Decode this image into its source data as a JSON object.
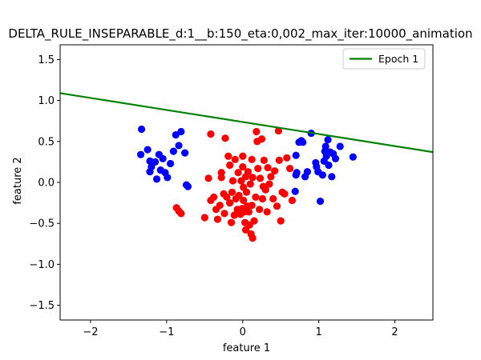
{
  "chart_data": {
    "type": "scatter",
    "title": "DELTA_RULE_INSEPARABLE_d:1__b:150_eta:0,002_max_iter:10000_animation",
    "xlabel": "feature 1",
    "ylabel": "feature 2",
    "xlim": [
      -2.4,
      2.5
    ],
    "ylim": [
      -1.68,
      1.68
    ],
    "xticks": [
      -2,
      -1,
      0,
      1,
      2
    ],
    "xtick_labels": [
      "−2",
      "−1",
      "0",
      "1",
      "2"
    ],
    "yticks": [
      -1.5,
      -1.0,
      -0.5,
      0.0,
      0.5,
      1.0,
      1.5
    ],
    "ytick_labels": [
      "−1.5",
      "−1.0",
      "−0.5",
      "0.0",
      "0.5",
      "1.0",
      "1.5"
    ],
    "grid": false,
    "legend_position": "upper-right",
    "series": [
      {
        "color": "#0000ff",
        "points": [
          [
            -1.33,
            0.65
          ],
          [
            -1.34,
            0.34
          ],
          [
            -1.25,
            0.4
          ],
          [
            -1.22,
            0.26
          ],
          [
            -1.2,
            0.19
          ],
          [
            -1.22,
            0.13
          ],
          [
            -1.15,
            0.25
          ],
          [
            -1.1,
            0.34
          ],
          [
            -1.08,
            0.15
          ],
          [
            -1.05,
            0.29
          ],
          [
            -1.02,
            0.12
          ],
          [
            -0.99,
            0.06
          ],
          [
            -0.95,
            0.23
          ],
          [
            -0.91,
            0.38
          ],
          [
            -0.88,
            0.58
          ],
          [
            -0.84,
            0.45
          ],
          [
            -0.81,
            0.62
          ],
          [
            -0.76,
            0.36
          ],
          [
            -0.74,
            -0.03
          ],
          [
            -0.72,
            -0.05
          ],
          [
            -1.13,
            0.04
          ],
          [
            0.7,
            0.09
          ],
          [
            0.71,
            0.12
          ],
          [
            0.74,
            0.49
          ],
          [
            0.77,
            0.51
          ],
          [
            0.79,
            0.49
          ],
          [
            0.7,
            0.33
          ],
          [
            0.69,
            -0.11
          ],
          [
            0.82,
            0.07
          ],
          [
            0.85,
            0.13
          ],
          [
            0.9,
            0.6
          ],
          [
            0.96,
            0.24
          ],
          [
            0.97,
            0.19
          ],
          [
            0.99,
            0.13
          ],
          [
            1.02,
            -0.23
          ],
          [
            1.05,
            0.09
          ],
          [
            1.07,
            0.26
          ],
          [
            1.08,
            0.38
          ],
          [
            1.09,
            0.44
          ],
          [
            1.1,
            0.32
          ],
          [
            1.12,
            0.52
          ],
          [
            1.13,
            0.21
          ],
          [
            1.15,
            0.37
          ],
          [
            1.17,
            0.07
          ],
          [
            1.19,
            0.35
          ],
          [
            1.22,
            0.29
          ],
          [
            1.28,
            0.44
          ],
          [
            1.45,
            0.31
          ]
        ]
      },
      {
        "color": "#ff0000",
        "points": [
          [
            -0.87,
            -0.31
          ],
          [
            -0.84,
            -0.35
          ],
          [
            -0.81,
            -0.38
          ],
          [
            -0.5,
            -0.43
          ],
          [
            -0.42,
            0.59
          ],
          [
            -0.42,
            -0.22
          ],
          [
            -0.38,
            -0.18
          ],
          [
            -0.35,
            -0.33
          ],
          [
            -0.33,
            -0.45
          ],
          [
            -0.3,
            -0.28
          ],
          [
            -0.28,
            0.06
          ],
          [
            -0.28,
            0.12
          ],
          [
            -0.25,
            -0.14
          ],
          [
            -0.24,
            -0.38
          ],
          [
            -0.23,
            0.54
          ],
          [
            -0.21,
            -0.18
          ],
          [
            -0.19,
            0.32
          ],
          [
            -0.17,
            0.21
          ],
          [
            -0.17,
            -0.25
          ],
          [
            -0.15,
            -0.49
          ],
          [
            -0.14,
            -0.12
          ],
          [
            -0.13,
            0.02
          ],
          [
            -0.11,
            -0.4
          ],
          [
            -0.1,
            0.28
          ],
          [
            -0.09,
            -0.2
          ],
          [
            -0.07,
            -0.33
          ],
          [
            -0.06,
            0.12
          ],
          [
            -0.05,
            -0.16
          ],
          [
            -0.03,
            -0.39
          ],
          [
            -0.02,
            0.02
          ],
          [
            0.0,
            0.32
          ],
          [
            0.0,
            0.19
          ],
          [
            0.01,
            -0.06
          ],
          [
            0.01,
            -0.22
          ],
          [
            0.02,
            -0.36
          ],
          [
            0.03,
            -0.49
          ],
          [
            0.04,
            0.07
          ],
          [
            0.05,
            -0.12
          ],
          [
            0.06,
            -0.29
          ],
          [
            0.07,
            0.13
          ],
          [
            0.08,
            -0.36
          ],
          [
            0.09,
            -0.52
          ],
          [
            0.1,
            -0.02
          ],
          [
            0.11,
            -0.63
          ],
          [
            0.12,
            -0.28
          ],
          [
            0.13,
            -0.68
          ],
          [
            0.13,
            0.06
          ],
          [
            0.15,
            -0.47
          ],
          [
            0.17,
            -0.18
          ],
          [
            0.19,
            0.5
          ],
          [
            0.2,
            0.17
          ],
          [
            0.22,
            -0.33
          ],
          [
            0.23,
            0.05
          ],
          [
            0.25,
            0.53
          ],
          [
            0.26,
            -0.2
          ],
          [
            0.28,
            0.27
          ],
          [
            0.3,
            -0.09
          ],
          [
            0.32,
            -0.36
          ],
          [
            0.33,
            0.18
          ],
          [
            0.35,
            -0.02
          ],
          [
            0.37,
            0.07
          ],
          [
            0.4,
            -0.2
          ],
          [
            0.42,
            0.14
          ],
          [
            0.45,
            -0.29
          ],
          [
            0.47,
            0.63
          ],
          [
            0.48,
            0.27
          ],
          [
            0.5,
            -0.47
          ],
          [
            0.52,
            -0.12
          ],
          [
            0.55,
            -0.14
          ],
          [
            0.58,
            0.3
          ],
          [
            0.62,
            0.17
          ],
          [
            0.65,
            -0.22
          ],
          [
            0.18,
            0.62
          ],
          [
            0.12,
            0.28
          ],
          [
            -0.45,
            0.05
          ],
          [
            0.04,
            -0.58
          ],
          [
            -0.01,
            -0.32
          ],
          [
            0.27,
            -0.05
          ]
        ]
      }
    ],
    "lines": [
      {
        "name": "Epoch 1",
        "color": "#008000",
        "x": [
          -2.4,
          2.5
        ],
        "y": [
          1.09,
          0.37
        ]
      }
    ]
  }
}
